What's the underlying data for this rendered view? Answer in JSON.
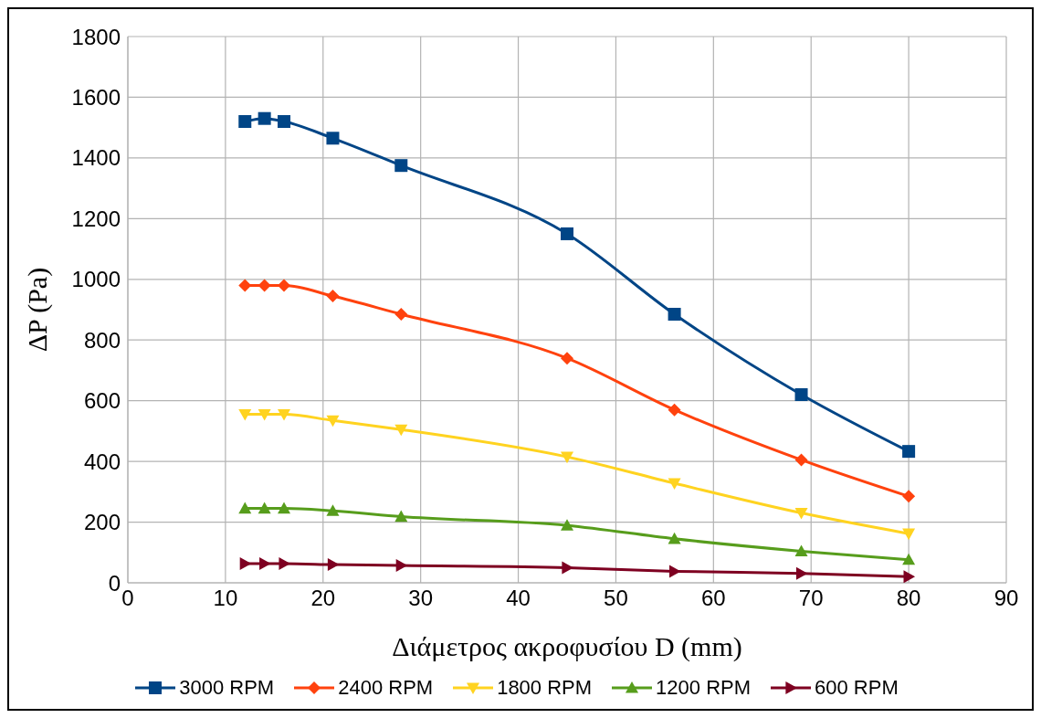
{
  "chart_data": {
    "type": "line",
    "xlabel": "Διάμετρος ακροφυσίου D (mm)",
    "ylabel": "ΔP (Pa)",
    "x": [
      12,
      14,
      16,
      21,
      28,
      45,
      56,
      69,
      80
    ],
    "series": [
      {
        "name": "3000 RPM",
        "color": "#004586",
        "marker": "square",
        "values": [
          1520,
          1530,
          1520,
          1465,
          1375,
          1150,
          885,
          620,
          433
        ]
      },
      {
        "name": "2400 RPM",
        "color": "#ff420e",
        "marker": "diamond",
        "values": [
          980,
          980,
          980,
          945,
          885,
          740,
          570,
          405,
          285
        ]
      },
      {
        "name": "1800 RPM",
        "color": "#ffd320",
        "marker": "triangle-down",
        "values": [
          555,
          555,
          555,
          535,
          505,
          415,
          328,
          230,
          162
        ]
      },
      {
        "name": "1200 RPM",
        "color": "#579d1c",
        "marker": "triangle",
        "values": [
          245,
          245,
          245,
          237,
          218,
          189,
          145,
          104,
          76
        ]
      },
      {
        "name": "600 RPM",
        "color": "#7e0021",
        "marker": "triangle-right",
        "values": [
          63,
          63,
          63,
          60,
          57,
          50,
          38,
          31,
          20
        ]
      }
    ],
    "xlim": [
      0,
      90
    ],
    "xticks": [
      0,
      10,
      20,
      30,
      40,
      50,
      60,
      70,
      80,
      90
    ],
    "ylim": [
      0,
      1800
    ],
    "yticks": [
      0,
      200,
      400,
      600,
      800,
      1000,
      1200,
      1400,
      1600,
      1800
    ],
    "grid": true,
    "legend": "bottom"
  }
}
